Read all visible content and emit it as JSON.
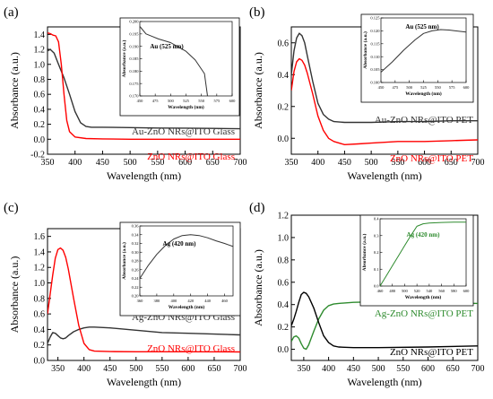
{
  "chart_data": [
    {
      "panel": "(a)",
      "type": "line",
      "xlabel": "Wavelength (nm)",
      "ylabel": "Absorbance (a.u.)",
      "xlim": [
        350,
        700
      ],
      "ylim": [
        -0.2,
        1.5
      ],
      "xticks": [
        350,
        400,
        450,
        500,
        550,
        600,
        650,
        700
      ],
      "yticks": [
        -0.2,
        0.0,
        0.2,
        0.4,
        0.6,
        0.8,
        1.0,
        1.2,
        1.4
      ],
      "yticks_labels": [
        "-0.2",
        "0.0",
        "0.2",
        "0.4",
        "0.6",
        "0.8",
        "1.0",
        "1.2",
        "1.4"
      ],
      "series": [
        {
          "name": "Au-ZnO NRs@ITO Glass",
          "color": "#333333",
          "x": [
            350,
            355,
            362,
            370,
            380,
            390,
            400,
            410,
            420,
            430,
            450,
            500,
            550,
            600,
            650,
            700
          ],
          "y": [
            1.18,
            1.2,
            1.15,
            1.0,
            0.82,
            0.6,
            0.37,
            0.22,
            0.17,
            0.16,
            0.16,
            0.155,
            0.15,
            0.148,
            0.145,
            0.14
          ]
        },
        {
          "name": "ZnO NRs@ITO Glass",
          "color": "#ff0000",
          "x": [
            350,
            355,
            360,
            365,
            370,
            375,
            380,
            385,
            390,
            400,
            420,
            450,
            500,
            600,
            700
          ],
          "y": [
            1.42,
            1.41,
            1.39,
            1.38,
            1.3,
            1.0,
            0.6,
            0.25,
            0.1,
            0.03,
            0.01,
            0.005,
            0.0,
            0.0,
            0.0
          ]
        }
      ],
      "labels": [
        {
          "text": "Au-ZnO NRs@ITO Glass",
          "color": "#333333"
        },
        {
          "text": "ZnO NRs@ITO Glass",
          "color": "#ff0000"
        }
      ],
      "inset": {
        "xlim": [
          450,
          600
        ],
        "ylim": [
          0.17,
          0.2
        ],
        "xticks": [
          450,
          475,
          500,
          525,
          550,
          575,
          600
        ],
        "yticks": [
          0.17,
          0.175,
          0.18,
          0.185,
          0.19,
          0.195,
          0.2
        ],
        "yticks_labels": [
          "0.170",
          "0.175",
          "0.180",
          "0.185",
          "0.190",
          "0.195",
          "0.200"
        ],
        "xlabel": "Wavelength (nm)",
        "ylabel": "Absorbance (a.u.)",
        "annotation": "Au (525 nm)",
        "color": "#333333",
        "x": [
          450,
          460,
          470,
          480,
          500,
          525,
          540,
          555,
          560
        ],
        "y": [
          0.198,
          0.195,
          0.194,
          0.193,
          0.1915,
          0.188,
          0.1845,
          0.179,
          0.17
        ]
      }
    },
    {
      "panel": "(b)",
      "type": "line",
      "xlabel": "Wavelength (nm)",
      "ylabel": "Absorbance (a.u.)",
      "xlim": [
        350,
        700
      ],
      "ylim": [
        -0.1,
        0.7
      ],
      "xticks": [
        350,
        400,
        450,
        500,
        550,
        600,
        650,
        700
      ],
      "yticks": [
        0.0,
        0.2,
        0.4,
        0.6
      ],
      "yticks_labels": [
        "0.0",
        "0.2",
        "0.4",
        "0.6"
      ],
      "series": [
        {
          "name": "Au-ZnO NRs@ITO PET",
          "color": "#333333",
          "x": [
            350,
            355,
            360,
            365,
            370,
            375,
            380,
            390,
            400,
            410,
            420,
            430,
            450,
            500,
            550,
            600,
            650,
            700
          ],
          "y": [
            0.4,
            0.55,
            0.63,
            0.66,
            0.645,
            0.6,
            0.52,
            0.36,
            0.22,
            0.15,
            0.12,
            0.105,
            0.1,
            0.1,
            0.105,
            0.105,
            0.11,
            0.11
          ]
        },
        {
          "name": "ZnO NRs@ITO PET",
          "color": "#ff0000",
          "x": [
            350,
            355,
            360,
            365,
            370,
            375,
            380,
            390,
            400,
            410,
            420,
            430,
            450,
            475,
            500,
            550,
            600,
            650,
            700
          ],
          "y": [
            0.3,
            0.42,
            0.48,
            0.5,
            0.49,
            0.46,
            0.41,
            0.28,
            0.14,
            0.05,
            0.0,
            -0.02,
            -0.04,
            -0.035,
            -0.03,
            -0.02,
            -0.02,
            -0.015,
            -0.01
          ]
        }
      ],
      "labels": [
        {
          "text": "Au-ZnO NRs@ITO PET",
          "color": "#333333"
        },
        {
          "text": "ZnO NRs@ITO PET",
          "color": "#ff0000"
        }
      ],
      "inset": {
        "xlim": [
          450,
          600
        ],
        "ylim": [
          0.1,
          0.125
        ],
        "xticks": [
          450,
          475,
          500,
          525,
          550,
          575,
          600
        ],
        "yticks": [
          0.1,
          0.105,
          0.11,
          0.115,
          0.12,
          0.125
        ],
        "yticks_labels": [
          "0.100",
          "0.105",
          "0.110",
          "0.115",
          "0.120",
          "0.125"
        ],
        "xlabel": "Wavelength (nm)",
        "ylabel": "Absorbance (a.u.)",
        "annotation": "Au (525 nm)",
        "color": "#333333",
        "x": [
          450,
          470,
          490,
          510,
          525,
          540,
          555,
          570,
          600
        ],
        "y": [
          0.104,
          0.108,
          0.1125,
          0.1165,
          0.119,
          0.12,
          0.1205,
          0.1203,
          0.1195
        ]
      }
    },
    {
      "panel": "(c)",
      "type": "line",
      "xlabel": "Wavelength (nm)",
      "ylabel": "Absorbance (a.u.)",
      "xlim": [
        330,
        700
      ],
      "ylim": [
        0.0,
        1.7
      ],
      "xticks": [
        350,
        400,
        450,
        500,
        550,
        600,
        650,
        700
      ],
      "yticks": [
        0.0,
        0.2,
        0.4,
        0.6,
        0.8,
        1.0,
        1.2,
        1.4,
        1.6
      ],
      "yticks_labels": [
        "0.0",
        "0.2",
        "0.4",
        "0.6",
        "0.8",
        "1.0",
        "1.2",
        "1.4",
        "1.6"
      ],
      "series": [
        {
          "name": "Ag-ZnO NRs@ITO Glass",
          "color": "#333333",
          "x": [
            330,
            335,
            340,
            345,
            350,
            355,
            360,
            365,
            370,
            380,
            390,
            400,
            410,
            420,
            450,
            500,
            550,
            600,
            650,
            700
          ],
          "y": [
            0.22,
            0.3,
            0.36,
            0.35,
            0.32,
            0.29,
            0.28,
            0.29,
            0.32,
            0.37,
            0.4,
            0.42,
            0.43,
            0.43,
            0.42,
            0.39,
            0.36,
            0.35,
            0.34,
            0.33
          ]
        },
        {
          "name": "ZnO NRs@ITO Glass",
          "color": "#ff0000",
          "x": [
            330,
            335,
            340,
            345,
            350,
            355,
            360,
            365,
            370,
            380,
            390,
            400,
            410,
            420,
            450,
            500,
            600,
            700
          ],
          "y": [
            0.6,
            0.85,
            1.1,
            1.32,
            1.43,
            1.45,
            1.42,
            1.33,
            1.18,
            0.8,
            0.45,
            0.22,
            0.14,
            0.12,
            0.115,
            0.112,
            0.112,
            0.11
          ]
        }
      ],
      "labels": [
        {
          "text": "Ag-ZnO NRs@ITO Glass",
          "color": "#333333"
        },
        {
          "text": "ZnO NRs@ITO Glass",
          "color": "#ff0000"
        }
      ],
      "inset": {
        "xlim": [
          360,
          470
        ],
        "ylim": [
          0.2,
          0.36
        ],
        "xticks": [
          360,
          380,
          400,
          420,
          440,
          460
        ],
        "yticks": [
          0.2,
          0.22,
          0.24,
          0.26,
          0.28,
          0.3,
          0.32,
          0.34,
          0.36
        ],
        "yticks_labels": [
          "0.20",
          "0.22",
          "0.24",
          "0.26",
          "0.28",
          "0.30",
          "0.32",
          "0.34",
          "0.36"
        ],
        "xlabel": "Wavelength (nm)",
        "ylabel": "Absorbance (a.u.)",
        "annotation": "Ag (420 nm)",
        "color": "#333333",
        "x": [
          360,
          370,
          380,
          390,
          400,
          410,
          420,
          430,
          440,
          450,
          460,
          470
        ],
        "y": [
          0.24,
          0.27,
          0.295,
          0.315,
          0.33,
          0.338,
          0.34,
          0.338,
          0.333,
          0.326,
          0.32,
          0.313
        ]
      }
    },
    {
      "panel": "(d)",
      "type": "line",
      "xlabel": "Wavelength (nm)",
      "ylabel": "Absorbance (a.u.)",
      "xlim": [
        325,
        700
      ],
      "ylim": [
        -0.1,
        1.2
      ],
      "xticks": [
        350,
        400,
        450,
        500,
        550,
        600,
        650,
        700
      ],
      "yticks": [
        0.0,
        0.2,
        0.4,
        0.6,
        0.8,
        1.0,
        1.2
      ],
      "yticks_labels": [
        "0.0",
        "0.2",
        "0.4",
        "0.6",
        "0.8",
        "1.0",
        "1.2"
      ],
      "series": [
        {
          "name": "Ag-ZnO NRs@ITO PET",
          "color": "#2e8b2e",
          "x": [
            325,
            330,
            335,
            340,
            345,
            350,
            355,
            360,
            370,
            380,
            390,
            400,
            410,
            420,
            450,
            500,
            550,
            600,
            650,
            700
          ],
          "y": [
            0.07,
            0.11,
            0.12,
            0.1,
            0.05,
            0.01,
            0.0,
            0.04,
            0.16,
            0.27,
            0.35,
            0.39,
            0.405,
            0.41,
            0.42,
            0.425,
            0.425,
            0.42,
            0.415,
            0.41
          ]
        },
        {
          "name": "ZnO NRs@ITO PET",
          "color": "#000000",
          "x": [
            325,
            330,
            335,
            340,
            345,
            350,
            355,
            360,
            365,
            370,
            380,
            390,
            400,
            410,
            420,
            450,
            500,
            600,
            700
          ],
          "y": [
            0.21,
            0.27,
            0.34,
            0.42,
            0.49,
            0.51,
            0.5,
            0.47,
            0.42,
            0.37,
            0.24,
            0.12,
            0.06,
            0.03,
            0.02,
            0.015,
            0.015,
            0.02,
            0.03
          ]
        }
      ],
      "labels": [
        {
          "text": "Ag-ZnO NRs@ITO PET",
          "color": "#2e8b2e"
        },
        {
          "text": "ZnO NRs@ITO PET",
          "color": "#000000"
        }
      ],
      "inset": {
        "xlim": [
          460,
          600
        ],
        "ylim": [
          0.0,
          0.4
        ],
        "xticks": [
          460,
          480,
          500,
          520,
          540,
          560,
          580,
          600
        ],
        "yticks": [
          0.0,
          0.1,
          0.2,
          0.3,
          0.4
        ],
        "yticks_labels": [
          "0.0",
          "0.1",
          "0.2",
          "0.3",
          "0.4"
        ],
        "xlabel": "Wavelength (nm)",
        "ylabel": "Absorbance (a.u.)",
        "annotation": "Ag (420 nm)",
        "color": "#2e8b2e",
        "x": [
          460,
          470,
          480,
          490,
          500,
          510,
          520,
          530,
          540,
          560,
          580,
          600
        ],
        "y": [
          0.0,
          0.06,
          0.12,
          0.18,
          0.24,
          0.3,
          0.355,
          0.37,
          0.375,
          0.378,
          0.38,
          0.38
        ]
      }
    }
  ]
}
